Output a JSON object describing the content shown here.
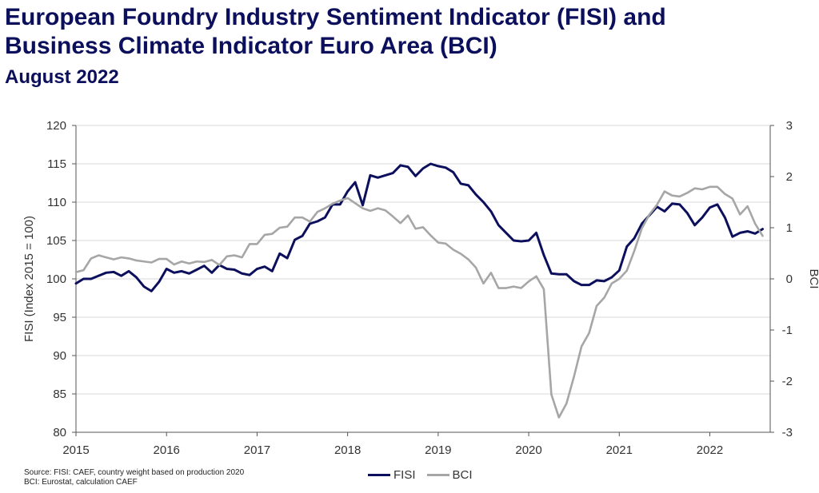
{
  "title_line1": "European Foundry Industry Sentiment Indicator (FISI) and",
  "title_line2": "Business Climate Indicator Euro Area (BCI)",
  "subtitle": "August 2022",
  "source_line1": "Source: FISI: CAEF, country weight based on production 2020",
  "source_line2": "BCI: Eurostat, calculation CAEF",
  "chart_data": {
    "type": "line",
    "ylabel_left": "FISI (Index 2015 = 100)",
    "ylabel_right": "BCI",
    "xlim": [
      2015,
      2022.667
    ],
    "ylim_left": [
      80,
      120
    ],
    "ylim_right": [
      -3,
      3
    ],
    "x_ticks": [
      2015,
      2016,
      2017,
      2018,
      2019,
      2020,
      2021,
      2022
    ],
    "x_tick_labels": [
      "2015",
      "2016",
      "2017",
      "2018",
      "2019",
      "2020",
      "2021",
      "2022"
    ],
    "y_ticks_left": [
      80,
      85,
      90,
      95,
      100,
      105,
      110,
      115,
      120
    ],
    "y_tick_labels_left": [
      "80",
      "85",
      "90",
      "95",
      "100",
      "105",
      "110",
      "115",
      "120"
    ],
    "y_ticks_right": [
      -3,
      -2,
      -1,
      0,
      1,
      2,
      3
    ],
    "y_tick_labels_right": [
      "-3",
      "-2",
      "-1",
      "0",
      "1",
      "2",
      "3"
    ],
    "grid": "horizontal",
    "legend_position": "bottom-center",
    "series": [
      {
        "name": "FISI",
        "axis": "left",
        "color": "#0b0f5c",
        "start": "2015-01",
        "values": [
          99.4,
          100.0,
          100.0,
          100.4,
          100.8,
          100.9,
          100.4,
          101.0,
          100.2,
          99.0,
          98.4,
          99.6,
          101.3,
          100.8,
          101.0,
          100.7,
          101.2,
          101.7,
          100.8,
          101.8,
          101.3,
          101.2,
          100.7,
          100.5,
          101.3,
          101.6,
          101.0,
          103.3,
          102.7,
          105.1,
          105.6,
          107.2,
          107.5,
          108.0,
          109.7,
          109.7,
          111.4,
          112.6,
          109.6,
          113.5,
          113.2,
          113.5,
          113.8,
          114.8,
          114.6,
          113.4,
          114.4,
          115.0,
          114.7,
          114.5,
          113.9,
          112.4,
          112.2,
          111.0,
          110.0,
          108.8,
          107.0,
          106.0,
          105.0,
          104.9,
          105.0,
          106.0,
          103.1,
          100.7,
          100.6,
          100.6,
          99.7,
          99.2,
          99.2,
          99.8,
          99.7,
          100.2,
          101.1,
          104.2,
          105.3,
          107.2,
          108.3,
          109.4,
          108.8,
          109.8,
          109.7,
          108.6,
          107.0,
          108.0,
          109.3,
          109.7,
          108.0,
          105.5,
          106.0,
          106.2,
          105.9,
          106.5
        ]
      },
      {
        "name": "BCI",
        "axis": "right",
        "color": "#a6a6a6",
        "start": "2015-01",
        "values": [
          0.13,
          0.17,
          0.4,
          0.46,
          0.42,
          0.38,
          0.42,
          0.4,
          0.36,
          0.34,
          0.32,
          0.39,
          0.39,
          0.28,
          0.34,
          0.3,
          0.34,
          0.33,
          0.37,
          0.27,
          0.44,
          0.46,
          0.42,
          0.68,
          0.68,
          0.86,
          0.88,
          1.0,
          1.02,
          1.2,
          1.2,
          1.12,
          1.31,
          1.38,
          1.47,
          1.53,
          1.58,
          1.48,
          1.38,
          1.33,
          1.38,
          1.34,
          1.22,
          1.09,
          1.24,
          0.98,
          1.01,
          0.85,
          0.71,
          0.69,
          0.57,
          0.49,
          0.38,
          0.22,
          -0.09,
          0.12,
          -0.18,
          -0.18,
          -0.15,
          -0.18,
          -0.05,
          0.05,
          -0.2,
          -2.26,
          -2.71,
          -2.44,
          -1.91,
          -1.32,
          -1.06,
          -0.53,
          -0.37,
          -0.09,
          0.0,
          0.16,
          0.55,
          0.99,
          1.26,
          1.45,
          1.71,
          1.63,
          1.61,
          1.68,
          1.77,
          1.75,
          1.8,
          1.8,
          1.66,
          1.57,
          1.26,
          1.42,
          1.08,
          0.84
        ]
      }
    ]
  }
}
